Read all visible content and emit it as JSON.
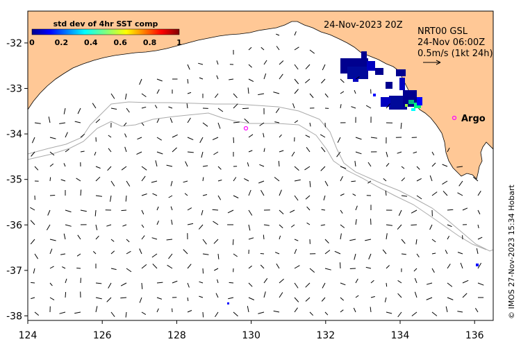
{
  "map": {
    "date_label": "24-Nov-2023 20Z",
    "product_label": "NRT00 GSL",
    "time_label": "24-Nov 06:00Z",
    "scale_label": "0.5m/s (1kt 24h)",
    "argo_label": "Argo",
    "credit": "© IMOS 27-Nov-2023 15:34 Hobart",
    "colorbar": {
      "title": "std dev of 4hr SST comp",
      "ticks": [
        "0",
        "0.2",
        "0.4",
        "0.6",
        "0.8",
        "1"
      ],
      "range": [
        0,
        1
      ]
    },
    "axes": {
      "x_ticks": [
        "124",
        "126",
        "128",
        "130",
        "132",
        "134",
        "136"
      ],
      "y_ticks": [
        "-32",
        "-33",
        "-34",
        "-35",
        "-36",
        "-37",
        "-38"
      ],
      "xlim": [
        124,
        136.5
      ],
      "ylim": [
        -38.1,
        -31.3
      ]
    },
    "colors": {
      "land": "#ffc896",
      "ocean": "#ffffff",
      "bathymetry": "#aaaaaa",
      "argo": "#ff00ff",
      "vectors": "#000000"
    }
  }
}
